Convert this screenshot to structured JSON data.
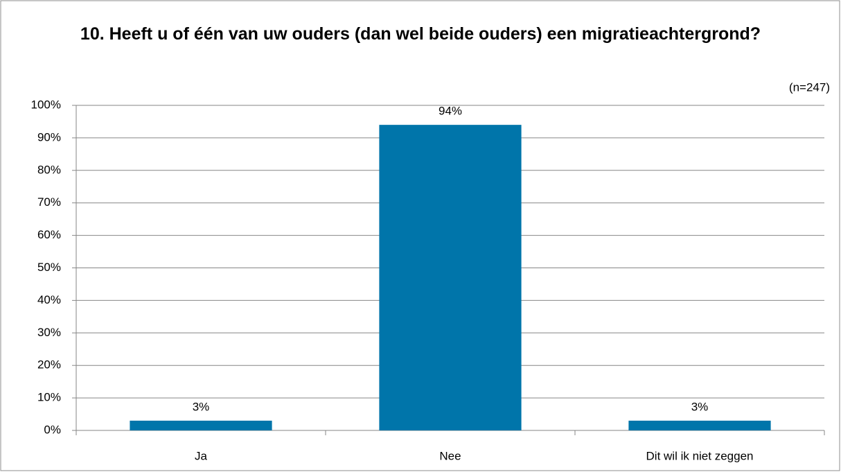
{
  "chart_data": {
    "type": "bar",
    "title": "10. Heeft u of één van uw ouders (dan wel beide ouders) een migratieachtergrond?",
    "subtitle": "(n=247)",
    "categories": [
      "Ja",
      "Nee",
      "Dit wil ik niet zeggen"
    ],
    "values": [
      3,
      94,
      3
    ],
    "value_labels": [
      "3%",
      "94%",
      "3%"
    ],
    "color": "#0075aa",
    "ylim": [
      0,
      100
    ],
    "yticks": [
      {
        "value": 0,
        "label": "0%"
      },
      {
        "value": 10,
        "label": "10%"
      },
      {
        "value": 20,
        "label": "20%"
      },
      {
        "value": 30,
        "label": "30%"
      },
      {
        "value": 40,
        "label": "40%"
      },
      {
        "value": 50,
        "label": "50%"
      },
      {
        "value": 60,
        "label": "60%"
      },
      {
        "value": 70,
        "label": "70%"
      },
      {
        "value": 80,
        "label": "80%"
      },
      {
        "value": 90,
        "label": "90%"
      },
      {
        "value": 100,
        "label": "100%"
      }
    ],
    "grid": true
  }
}
